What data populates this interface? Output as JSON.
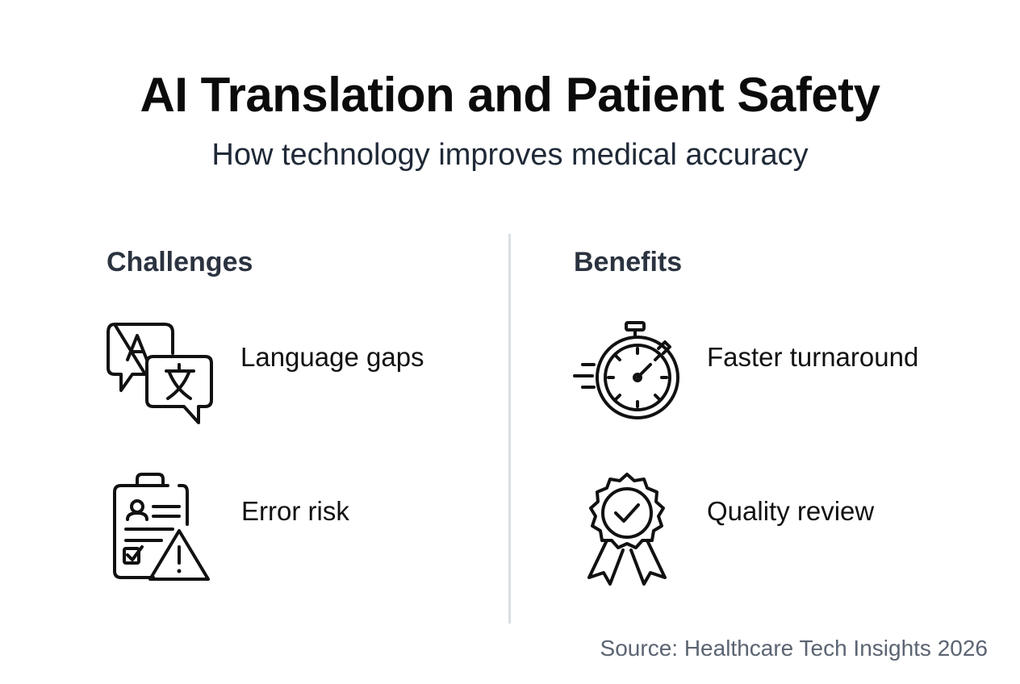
{
  "header": {
    "title": "AI Translation and Patient Safety",
    "subtitle": "How technology improves medical accuracy"
  },
  "columns": {
    "left": {
      "heading": "Challenges",
      "items": [
        {
          "label": "Language gaps",
          "icon": "translation-speech-bubbles-icon"
        },
        {
          "label": "Error risk",
          "icon": "clipboard-warning-icon"
        }
      ]
    },
    "right": {
      "heading": "Benefits",
      "items": [
        {
          "label": "Faster turnaround",
          "icon": "stopwatch-icon"
        },
        {
          "label": "Quality review",
          "icon": "award-badge-check-icon"
        }
      ]
    }
  },
  "footer": {
    "source": "Source: Healthcare Tech Insights 2026"
  },
  "colors": {
    "title": "#0b0b0b",
    "heading": "#2b3340",
    "divider": "#d7dee6",
    "source": "#5b6472"
  }
}
